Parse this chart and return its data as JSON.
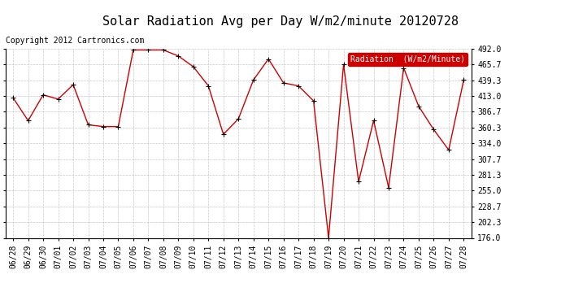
{
  "title": "Solar Radiation Avg per Day W/m2/minute 20120728",
  "copyright": "Copyright 2012 Cartronics.com",
  "legend_label": "Radiation  (W/m2/Minute)",
  "dates": [
    "06/28",
    "06/29",
    "06/30",
    "07/01",
    "07/02",
    "07/03",
    "07/04",
    "07/05",
    "07/06",
    "07/07",
    "07/08",
    "07/09",
    "07/10",
    "07/11",
    "07/12",
    "07/13",
    "07/14",
    "07/15",
    "07/16",
    "07/17",
    "07/18",
    "07/19",
    "07/20",
    "07/21",
    "07/22",
    "07/23",
    "07/24",
    "07/25",
    "07/26",
    "07/27",
    "07/28"
  ],
  "values": [
    410,
    372,
    415,
    408,
    432,
    365,
    362,
    362,
    490,
    490,
    490,
    480,
    462,
    430,
    349,
    375,
    440,
    475,
    435,
    430,
    405,
    176,
    466,
    270,
    372,
    260,
    460,
    396,
    357,
    323,
    440
  ],
  "ylim": [
    176.0,
    492.0
  ],
  "yticks": [
    176.0,
    202.3,
    228.7,
    255.0,
    281.3,
    307.7,
    334.0,
    360.3,
    386.7,
    413.0,
    439.3,
    465.7,
    492.0
  ],
  "line_color": "#cc0000",
  "marker": "+",
  "marker_color": "#000000",
  "bg_color": "#ffffff",
  "plot_bg_color": "#ffffff",
  "grid_color": "#bbbbbb",
  "title_fontsize": 11,
  "tick_fontsize": 7,
  "copyright_fontsize": 7,
  "legend_bg": "#cc0000",
  "legend_text_color": "#ffffff",
  "legend_fontsize": 7
}
